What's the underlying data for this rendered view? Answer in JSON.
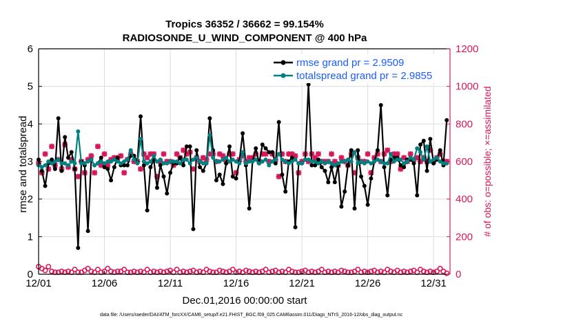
{
  "chart_data": {
    "type": "line",
    "title": "Tropics 36352 / 36662 = 99.154%",
    "subtitle": "RADIOSONDE_U_WIND_COMPONENT @ 400 hPa",
    "xlabel": "Dec.01,2016 00:00:00 start",
    "ylabel": "rmse and totalspread",
    "y2label": "# of obs: o=possible; ×=assimilated",
    "footer": "data file: /Users/raeder/DAI/ATM_forcXX/CAM6_setup/f.e21.FHIST_BGC.f09_025.CAM6assim.011/Diags_NTrS_2016-12/obs_diag_output.nc",
    "xlim": [
      1,
      32.25
    ],
    "ylim": [
      0,
      6
    ],
    "y2lim": [
      0,
      1200
    ],
    "x_ticks": [
      1,
      6,
      11,
      16,
      21,
      26,
      31
    ],
    "x_tick_labels": [
      "12/01",
      "12/06",
      "12/11",
      "12/16",
      "12/21",
      "12/26",
      "12/31"
    ],
    "y_ticks": [
      0,
      1,
      2,
      3,
      4,
      5,
      6
    ],
    "y2_ticks": [
      0,
      200,
      400,
      600,
      800,
      1000,
      1200
    ],
    "legend_position": "top-right",
    "colors": {
      "rmse": "#000000",
      "spread": "#008080",
      "obs": "#d6175a",
      "axis": "#000000"
    },
    "series": [
      {
        "name": "rmse grand pr = 2.9509",
        "key": "rmse",
        "axis": "left",
        "values": [
          3.05,
          2.75,
          2.35,
          2.95,
          3.05,
          2.8,
          4.15,
          2.75,
          3.65,
          3.1,
          3.25,
          2.8,
          0.7,
          3.0,
          2.9,
          1.15,
          3.05,
          2.9,
          2.95,
          3.1,
          2.85,
          2.8,
          2.5,
          2.85,
          3.1,
          2.9,
          2.9,
          2.9,
          3.15,
          3.15,
          3.0,
          4.2,
          2.9,
          1.7,
          2.85,
          3.05,
          2.3,
          2.9,
          2.6,
          2.15,
          2.7,
          2.95,
          2.95,
          3.1,
          2.9,
          3.4,
          3.4,
          1.2,
          3.3,
          2.85,
          2.75,
          2.95,
          4.15,
          3.3,
          2.5,
          2.65,
          2.4,
          2.95,
          3.4,
          2.6,
          2.55,
          3.0,
          3.75,
          2.9,
          1.75,
          3.0,
          3.35,
          2.95,
          3.45,
          3.35,
          3.25,
          3.25,
          2.95,
          4.05,
          2.65,
          2.2,
          3.0,
          3.1,
          1.25,
          2.95,
          2.95,
          3.05,
          5.05,
          2.9,
          2.9,
          3.05,
          2.85,
          2.75,
          2.45,
          2.85,
          2.45,
          2.9,
          1.8,
          2.2,
          2.9,
          3.3,
          1.75,
          3.3,
          2.6,
          2.35,
          1.85,
          2.55,
          3.0,
          3.3,
          4.5,
          2.85,
          2.1,
          3.05,
          3.1,
          3.1,
          2.9,
          2.85,
          3.05,
          3.05,
          2.95,
          2.1,
          3.45,
          3.55,
          2.75,
          3.6,
          2.95,
          3.05,
          3.3,
          2.9,
          4.1
        ],
        "x_start": 1,
        "x_step": 0.25
      },
      {
        "name": "totalspread grand pr = 2.9855",
        "key": "spread",
        "axis": "left",
        "values": [
          2.9,
          2.85,
          2.9,
          3.0,
          2.95,
          3.0,
          3.05,
          2.95,
          2.95,
          2.9,
          3.0,
          2.95,
          3.8,
          2.95,
          2.95,
          3.0,
          3.05,
          2.9,
          2.95,
          3.0,
          2.95,
          3.0,
          3.0,
          3.05,
          3.0,
          2.95,
          3.0,
          3.05,
          3.3,
          3.05,
          2.95,
          3.6,
          3.0,
          2.95,
          3.0,
          3.15,
          3.0,
          3.05,
          2.95,
          2.95,
          3.0,
          3.0,
          3.0,
          2.95,
          3.05,
          3.05,
          2.95,
          3.05,
          3.1,
          3.0,
          2.95,
          2.95,
          3.7,
          3.1,
          3.0,
          3.0,
          3.05,
          3.1,
          3.0,
          3.05,
          3.0,
          2.95,
          3.25,
          2.95,
          3.0,
          3.0,
          3.05,
          2.95,
          3.0,
          3.05,
          2.9,
          3.0,
          3.05,
          3.2,
          3.05,
          3.0,
          2.95,
          3.0,
          3.05,
          2.95,
          2.95,
          3.05,
          3.05,
          3.0,
          3.0,
          2.95,
          3.0,
          2.95,
          3.0,
          2.95,
          2.9,
          2.95,
          3.0,
          3.0,
          3.05,
          3.0,
          3.25,
          2.95,
          3.0,
          2.95,
          3.0,
          2.95,
          3.0,
          3.05,
          3.0,
          2.95,
          2.95,
          3.2,
          3.0,
          3.05,
          3.05,
          2.95,
          3.0,
          3.1,
          3.05,
          3.35,
          3.25,
          3.05,
          3.4,
          3.0,
          3.05,
          3.1,
          3.0,
          2.95,
          2.95
        ],
        "x_start": 1,
        "x_step": 0.25
      },
      {
        "name": "# of obs assimilated",
        "key": "obs_assim",
        "axis": "right",
        "marker": "x",
        "values": [
          590,
          540,
          640,
          560,
          680,
          580,
          610,
          560,
          690,
          570,
          610,
          560,
          520,
          600,
          540,
          610,
          630,
          540,
          680,
          580,
          640,
          580,
          610,
          620,
          620,
          630,
          540,
          610,
          640,
          600,
          600,
          560,
          640,
          620,
          640,
          640,
          520,
          600,
          640,
          600,
          600,
          580,
          640,
          620,
          660,
          640,
          650,
          560,
          620,
          600,
          620,
          610,
          640,
          640,
          600,
          640,
          630,
          600,
          640,
          640,
          540,
          610,
          630,
          600,
          620,
          620,
          640,
          600,
          640,
          640,
          600,
          640,
          610,
          520,
          640,
          600,
          640,
          640,
          630,
          540,
          600,
          640,
          600,
          640,
          620,
          640,
          600,
          600,
          600,
          640,
          600,
          580,
          620,
          600,
          580,
          640,
          540,
          620,
          600,
          600,
          640,
          540,
          620,
          640,
          600,
          640,
          660,
          600,
          640,
          640,
          560,
          620,
          600,
          640,
          610,
          620,
          600,
          620,
          600,
          660,
          600,
          620,
          640,
          600,
          600
        ],
        "x_start": 1,
        "x_step": 0.25
      },
      {
        "name": "# of obs possible",
        "key": "obs_poss",
        "axis": "right",
        "marker": "o",
        "values": [
          40,
          30,
          20,
          40,
          15,
          10,
          10,
          15,
          10,
          15,
          10,
          25,
          10,
          10,
          20,
          30,
          15,
          10,
          25,
          10,
          15,
          30,
          15,
          10,
          15,
          15,
          25,
          10,
          10,
          15,
          10,
          15,
          10,
          25,
          10,
          15,
          10,
          15,
          10,
          15,
          20,
          10,
          25,
          10,
          15,
          10,
          15,
          20,
          10,
          15,
          10,
          25,
          15,
          10,
          10,
          20,
          15,
          10,
          15,
          25,
          10,
          15,
          10,
          20,
          15,
          10,
          15,
          10,
          15,
          25,
          10,
          15,
          20,
          10,
          15,
          10,
          25,
          15,
          10,
          10,
          15,
          20,
          10,
          15,
          10,
          15,
          25,
          10,
          15,
          10,
          15,
          10,
          20,
          15,
          10,
          10,
          15,
          25,
          10,
          15,
          10,
          15,
          20,
          10,
          15,
          10,
          25,
          15,
          10,
          20,
          10,
          15,
          10,
          15,
          20,
          10,
          25,
          15,
          10,
          15,
          10,
          15,
          30,
          15,
          5
        ],
        "x_start": 1,
        "x_step": 0.25
      }
    ]
  }
}
